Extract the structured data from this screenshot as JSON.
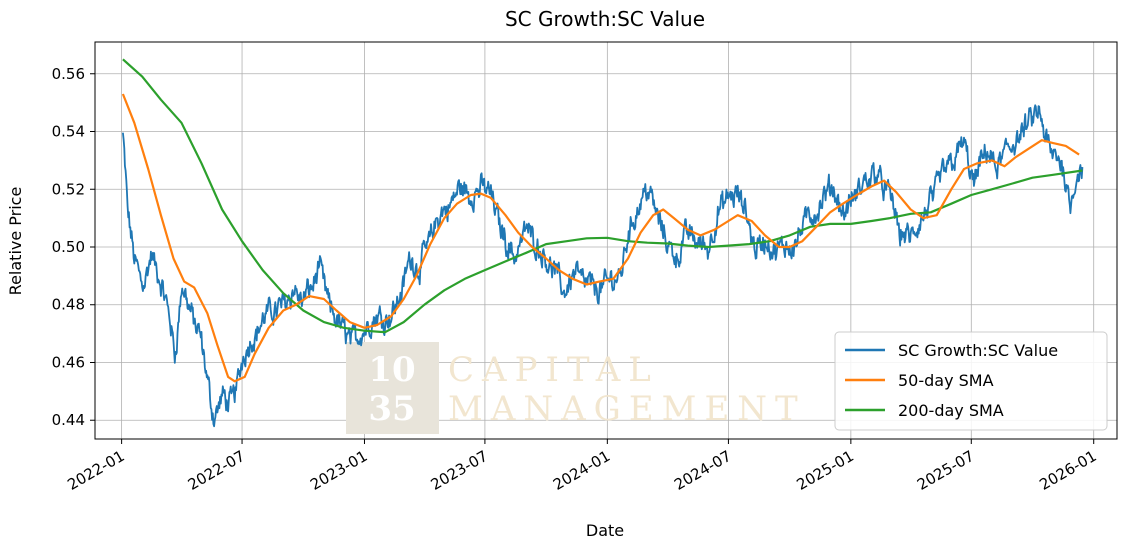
{
  "chart_data": {
    "type": "line",
    "title": "SC Growth:SC Value",
    "xlabel": "Date",
    "ylabel": "Relative Price",
    "xlim": [
      "2021-11-22",
      "2026-02-05"
    ],
    "ylim": [
      0.4335,
      0.571
    ],
    "grid": true,
    "legend_position": "lower-right",
    "x_ticks": [
      "2022-01",
      "2022-07",
      "2023-01",
      "2023-07",
      "2024-01",
      "2024-07",
      "2025-01",
      "2025-07",
      "2026-01"
    ],
    "y_ticks": [
      "0.44",
      "0.46",
      "0.48",
      "0.50",
      "0.52",
      "0.54",
      "0.56"
    ],
    "series": [
      {
        "name": "SC Growth:SC Value",
        "color": "#1f77b4",
        "noisy": true,
        "points": [
          [
            "2022-01-03",
            0.539
          ],
          [
            "2022-01-10",
            0.512
          ],
          [
            "2022-01-20",
            0.496
          ],
          [
            "2022-02-01",
            0.488
          ],
          [
            "2022-02-15",
            0.497
          ],
          [
            "2022-03-01",
            0.486
          ],
          [
            "2022-03-15",
            0.475
          ],
          [
            "2022-03-22",
            0.462
          ],
          [
            "2022-04-01",
            0.486
          ],
          [
            "2022-04-15",
            0.478
          ],
          [
            "2022-05-01",
            0.466
          ],
          [
            "2022-05-10",
            0.452
          ],
          [
            "2022-05-20",
            0.441
          ],
          [
            "2022-06-01",
            0.448
          ],
          [
            "2022-06-15",
            0.445
          ],
          [
            "2022-06-25",
            0.454
          ],
          [
            "2022-07-05",
            0.465
          ],
          [
            "2022-07-20",
            0.47
          ],
          [
            "2022-08-05",
            0.476
          ],
          [
            "2022-08-20",
            0.478
          ],
          [
            "2022-09-01",
            0.481
          ],
          [
            "2022-09-15",
            0.486
          ],
          [
            "2022-10-01",
            0.481
          ],
          [
            "2022-10-15",
            0.487
          ],
          [
            "2022-10-25",
            0.493
          ],
          [
            "2022-11-10",
            0.478
          ],
          [
            "2022-12-01",
            0.471
          ],
          [
            "2022-12-15",
            0.468
          ],
          [
            "2023-01-01",
            0.472
          ],
          [
            "2023-01-20",
            0.476
          ],
          [
            "2023-02-10",
            0.477
          ],
          [
            "2023-02-25",
            0.484
          ],
          [
            "2023-03-10",
            0.496
          ],
          [
            "2023-03-25",
            0.493
          ],
          [
            "2023-04-10",
            0.503
          ],
          [
            "2023-04-25",
            0.511
          ],
          [
            "2023-05-10",
            0.514
          ],
          [
            "2023-05-25",
            0.521
          ],
          [
            "2023-06-10",
            0.517
          ],
          [
            "2023-06-25",
            0.521
          ],
          [
            "2023-07-10",
            0.519
          ],
          [
            "2023-07-20",
            0.51
          ],
          [
            "2023-08-01",
            0.503
          ],
          [
            "2023-08-15",
            0.497
          ],
          [
            "2023-09-01",
            0.507
          ],
          [
            "2023-09-15",
            0.502
          ],
          [
            "2023-10-01",
            0.497
          ],
          [
            "2023-10-15",
            0.491
          ],
          [
            "2023-10-27",
            0.484
          ],
          [
            "2023-11-15",
            0.493
          ],
          [
            "2023-12-01",
            0.487
          ],
          [
            "2023-12-20",
            0.485
          ],
          [
            "2024-01-05",
            0.488
          ],
          [
            "2024-01-20",
            0.49
          ],
          [
            "2024-02-01",
            0.505
          ],
          [
            "2024-02-20",
            0.516
          ],
          [
            "2024-03-01",
            0.522
          ],
          [
            "2024-03-15",
            0.511
          ],
          [
            "2024-04-01",
            0.501
          ],
          [
            "2024-04-15",
            0.497
          ],
          [
            "2024-05-01",
            0.505
          ],
          [
            "2024-05-15",
            0.502
          ],
          [
            "2024-06-01",
            0.5
          ],
          [
            "2024-06-15",
            0.512
          ],
          [
            "2024-07-01",
            0.516
          ],
          [
            "2024-07-15",
            0.518
          ],
          [
            "2024-08-01",
            0.508
          ],
          [
            "2024-08-10",
            0.5
          ],
          [
            "2024-08-25",
            0.502
          ],
          [
            "2024-09-10",
            0.497
          ],
          [
            "2024-09-25",
            0.5
          ],
          [
            "2024-10-10",
            0.503
          ],
          [
            "2024-10-25",
            0.509
          ],
          [
            "2024-11-10",
            0.512
          ],
          [
            "2024-11-20",
            0.515
          ],
          [
            "2024-12-05",
            0.52
          ],
          [
            "2024-12-20",
            0.512
          ],
          [
            "2025-01-05",
            0.516
          ],
          [
            "2025-01-25",
            0.523
          ],
          [
            "2025-02-10",
            0.527
          ],
          [
            "2025-02-20",
            0.521
          ],
          [
            "2025-03-05",
            0.515
          ],
          [
            "2025-03-15",
            0.505
          ],
          [
            "2025-04-01",
            0.503
          ],
          [
            "2025-04-10",
            0.505
          ],
          [
            "2025-04-20",
            0.509
          ],
          [
            "2025-05-05",
            0.517
          ],
          [
            "2025-05-20",
            0.526
          ],
          [
            "2025-06-05",
            0.532
          ],
          [
            "2025-06-20",
            0.536
          ],
          [
            "2025-07-05",
            0.521
          ],
          [
            "2025-07-15",
            0.528
          ],
          [
            "2025-07-25",
            0.533
          ],
          [
            "2025-08-10",
            0.526
          ],
          [
            "2025-08-25",
            0.535
          ],
          [
            "2025-09-10",
            0.538
          ],
          [
            "2025-09-20",
            0.54
          ],
          [
            "2025-10-01",
            0.544
          ],
          [
            "2025-10-10",
            0.547
          ],
          [
            "2025-10-20",
            0.536
          ],
          [
            "2025-11-01",
            0.531
          ],
          [
            "2025-11-10",
            0.53
          ],
          [
            "2025-11-20",
            0.524
          ],
          [
            "2025-11-26",
            0.516
          ],
          [
            "2025-12-05",
            0.525
          ],
          [
            "2025-12-15",
            0.528
          ]
        ]
      },
      {
        "name": "50-day SMA",
        "color": "#ff7f0e",
        "noisy": false,
        "points": [
          [
            "2022-01-03",
            0.553
          ],
          [
            "2022-01-20",
            0.543
          ],
          [
            "2022-02-10",
            0.527
          ],
          [
            "2022-03-01",
            0.511
          ],
          [
            "2022-03-20",
            0.496
          ],
          [
            "2022-04-05",
            0.488
          ],
          [
            "2022-04-20",
            0.486
          ],
          [
            "2022-05-10",
            0.477
          ],
          [
            "2022-05-25",
            0.466
          ],
          [
            "2022-06-10",
            0.455
          ],
          [
            "2022-06-20",
            0.4535
          ],
          [
            "2022-07-05",
            0.455
          ],
          [
            "2022-07-20",
            0.463
          ],
          [
            "2022-08-10",
            0.472
          ],
          [
            "2022-09-01",
            0.478
          ],
          [
            "2022-09-20",
            0.48
          ],
          [
            "2022-10-10",
            0.483
          ],
          [
            "2022-11-01",
            0.482
          ],
          [
            "2022-11-20",
            0.478
          ],
          [
            "2022-12-10",
            0.474
          ],
          [
            "2023-01-01",
            0.472
          ],
          [
            "2023-01-20",
            0.473
          ],
          [
            "2023-02-10",
            0.476
          ],
          [
            "2023-03-01",
            0.482
          ],
          [
            "2023-03-20",
            0.49
          ],
          [
            "2023-04-10",
            0.501
          ],
          [
            "2023-05-01",
            0.51
          ],
          [
            "2023-05-20",
            0.515
          ],
          [
            "2023-06-10",
            0.518
          ],
          [
            "2023-06-25",
            0.5185
          ],
          [
            "2023-07-10",
            0.517
          ],
          [
            "2023-08-01",
            0.511
          ],
          [
            "2023-08-20",
            0.505
          ],
          [
            "2023-09-10",
            0.5
          ],
          [
            "2023-10-01",
            0.496
          ],
          [
            "2023-10-20",
            0.492
          ],
          [
            "2023-11-10",
            0.489
          ],
          [
            "2023-12-01",
            0.487
          ],
          [
            "2023-12-20",
            0.488
          ],
          [
            "2024-01-10",
            0.489
          ],
          [
            "2024-02-01",
            0.496
          ],
          [
            "2024-02-20",
            0.505
          ],
          [
            "2024-03-10",
            0.511
          ],
          [
            "2024-03-25",
            0.513
          ],
          [
            "2024-04-10",
            0.51
          ],
          [
            "2024-05-01",
            0.506
          ],
          [
            "2024-05-20",
            0.504
          ],
          [
            "2024-06-10",
            0.506
          ],
          [
            "2024-07-01",
            0.509
          ],
          [
            "2024-07-15",
            0.511
          ],
          [
            "2024-08-05",
            0.509
          ],
          [
            "2024-08-25",
            0.504
          ],
          [
            "2024-09-15",
            0.5
          ],
          [
            "2024-10-01",
            0.5
          ],
          [
            "2024-10-20",
            0.502
          ],
          [
            "2024-11-10",
            0.507
          ],
          [
            "2024-12-01",
            0.512
          ],
          [
            "2024-12-20",
            0.515
          ],
          [
            "2025-01-10",
            0.518
          ],
          [
            "2025-02-01",
            0.521
          ],
          [
            "2025-02-20",
            0.523
          ],
          [
            "2025-03-10",
            0.519
          ],
          [
            "2025-04-01",
            0.513
          ],
          [
            "2025-04-20",
            0.51
          ],
          [
            "2025-05-10",
            0.511
          ],
          [
            "2025-06-01",
            0.52
          ],
          [
            "2025-06-20",
            0.527
          ],
          [
            "2025-07-10",
            0.529
          ],
          [
            "2025-08-01",
            0.53
          ],
          [
            "2025-08-20",
            0.528
          ],
          [
            "2025-09-05",
            0.531
          ],
          [
            "2025-09-25",
            0.534
          ],
          [
            "2025-10-15",
            0.537
          ],
          [
            "2025-11-01",
            0.536
          ],
          [
            "2025-11-20",
            0.535
          ],
          [
            "2025-12-10",
            0.532
          ]
        ]
      },
      {
        "name": "200-day SMA",
        "color": "#2ca02c",
        "noisy": false,
        "points": [
          [
            "2022-01-03",
            0.565
          ],
          [
            "2022-02-01",
            0.559
          ],
          [
            "2022-03-01",
            0.551
          ],
          [
            "2022-04-01",
            0.543
          ],
          [
            "2022-05-01",
            0.529
          ],
          [
            "2022-06-01",
            0.513
          ],
          [
            "2022-07-01",
            0.502
          ],
          [
            "2022-08-01",
            0.492
          ],
          [
            "2022-09-01",
            0.484
          ],
          [
            "2022-10-01",
            0.478
          ],
          [
            "2022-11-01",
            0.474
          ],
          [
            "2022-12-01",
            0.472
          ],
          [
            "2023-01-01",
            0.471
          ],
          [
            "2023-02-01",
            0.4705
          ],
          [
            "2023-03-01",
            0.474
          ],
          [
            "2023-04-01",
            0.48
          ],
          [
            "2023-05-01",
            0.485
          ],
          [
            "2023-06-01",
            0.489
          ],
          [
            "2023-07-01",
            0.492
          ],
          [
            "2023-08-01",
            0.495
          ],
          [
            "2023-09-01",
            0.498
          ],
          [
            "2023-10-01",
            0.501
          ],
          [
            "2023-11-01",
            0.502
          ],
          [
            "2023-12-01",
            0.503
          ],
          [
            "2024-01-01",
            0.5032
          ],
          [
            "2024-02-01",
            0.502
          ],
          [
            "2024-03-01",
            0.5015
          ],
          [
            "2024-04-01",
            0.5012
          ],
          [
            "2024-05-01",
            0.5005
          ],
          [
            "2024-06-01",
            0.5
          ],
          [
            "2024-07-01",
            0.5005
          ],
          [
            "2024-08-01",
            0.501
          ],
          [
            "2024-09-01",
            0.502
          ],
          [
            "2024-10-01",
            0.504
          ],
          [
            "2024-11-01",
            0.507
          ],
          [
            "2024-12-01",
            0.508
          ],
          [
            "2025-01-01",
            0.508
          ],
          [
            "2025-02-01",
            0.509
          ],
          [
            "2025-03-01",
            0.51
          ],
          [
            "2025-04-01",
            0.5115
          ],
          [
            "2025-05-01",
            0.512
          ],
          [
            "2025-06-01",
            0.515
          ],
          [
            "2025-07-01",
            0.518
          ],
          [
            "2025-08-01",
            0.52
          ],
          [
            "2025-09-01",
            0.522
          ],
          [
            "2025-10-01",
            0.524
          ],
          [
            "2025-11-01",
            0.525
          ],
          [
            "2025-12-15",
            0.5265
          ]
        ]
      }
    ]
  },
  "watermark": {
    "number_top": "10",
    "number_bottom": "35",
    "line1": "CAPITAL",
    "line2": "MANAGEMENT",
    "box_color": "#e8e4da",
    "text_color": "#f2e6cf"
  }
}
